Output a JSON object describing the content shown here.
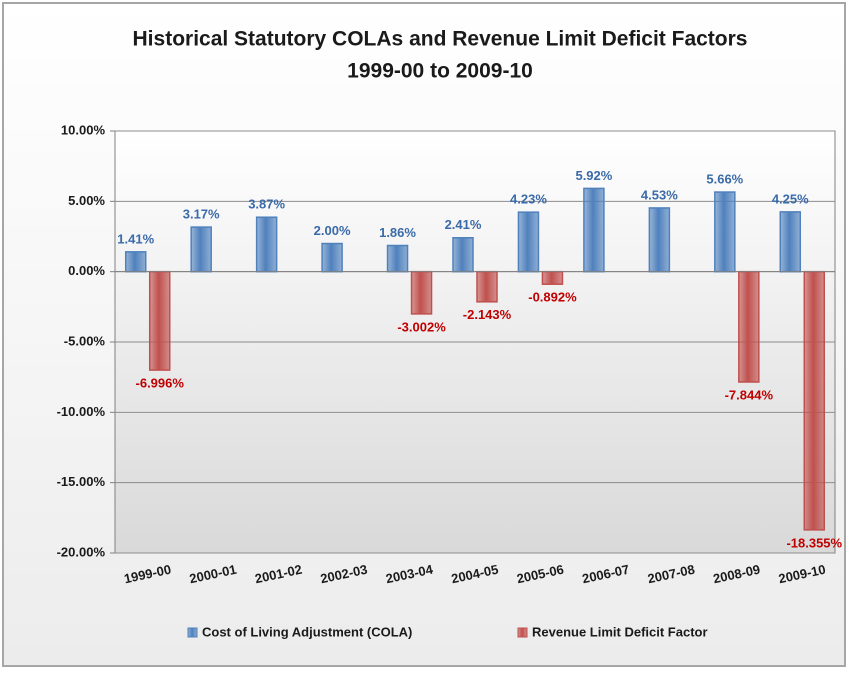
{
  "chart_data": {
    "type": "bar",
    "title": "Historical Statutory COLAs and Revenue Limit Deficit Factors",
    "subtitle": "1999-00 to 2009-10",
    "categories": [
      "1999-00",
      "2000-01",
      "2001-02",
      "2002-03",
      "2003-04",
      "2004-05",
      "2005-06",
      "2006-07",
      "2007-08",
      "2008-09",
      "2009-10"
    ],
    "series": [
      {
        "name": "Cost of Living Adjustment (COLA)",
        "color": "#4f81bd",
        "label_color": "#3a6aa8",
        "values": [
          1.41,
          3.17,
          3.87,
          2.0,
          1.86,
          2.41,
          4.23,
          5.92,
          4.53,
          5.66,
          4.25
        ],
        "value_labels": [
          "1.41%",
          "3.17%",
          "3.87%",
          "2.00%",
          "1.86%",
          "2.41%",
          "4.23%",
          "5.92%",
          "4.53%",
          "5.66%",
          "4.25%"
        ]
      },
      {
        "name": "Revenue Limit Deficit Factor",
        "color": "#c0504d",
        "label_color": "#c00000",
        "values": [
          -6.996,
          null,
          null,
          null,
          -3.002,
          -2.143,
          -0.892,
          null,
          null,
          -7.844,
          -18.355
        ],
        "value_labels": [
          "-6.996%",
          null,
          null,
          null,
          "-3.002%",
          "-2.143%",
          "-0.892%",
          null,
          null,
          "-7.844%",
          "-18.355%"
        ]
      }
    ],
    "ylim": [
      -20,
      10
    ],
    "yticks": [
      {
        "value": -20,
        "label": "-20.00%"
      },
      {
        "value": -15,
        "label": "-15.00%"
      },
      {
        "value": -10,
        "label": "-10.00%"
      },
      {
        "value": -5,
        "label": "-5.00%"
      },
      {
        "value": 0,
        "label": "0.00%"
      },
      {
        "value": 5,
        "label": "5.00%"
      },
      {
        "value": 10,
        "label": "10.00%"
      }
    ],
    "grid": true,
    "legend": "bottom"
  }
}
